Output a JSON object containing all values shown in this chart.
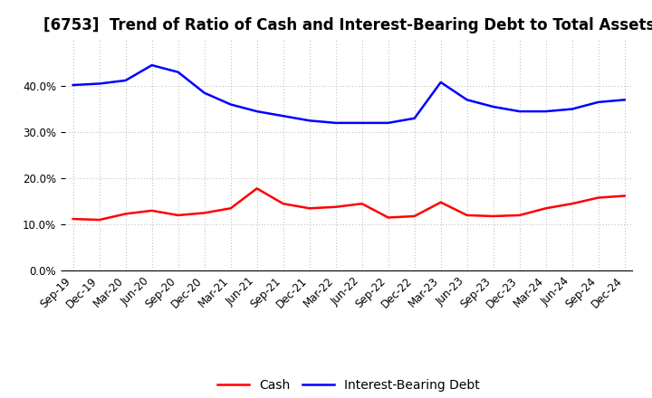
{
  "title": "[6753]  Trend of Ratio of Cash and Interest-Bearing Debt to Total Assets",
  "labels": [
    "Sep-19",
    "Dec-19",
    "Mar-20",
    "Jun-20",
    "Sep-20",
    "Dec-20",
    "Mar-21",
    "Jun-21",
    "Sep-21",
    "Dec-21",
    "Mar-22",
    "Jun-22",
    "Sep-22",
    "Dec-22",
    "Mar-23",
    "Jun-23",
    "Sep-23",
    "Dec-23",
    "Mar-24",
    "Jun-24",
    "Sep-24",
    "Dec-24"
  ],
  "cash": [
    11.2,
    11.0,
    12.3,
    13.0,
    12.0,
    12.5,
    13.5,
    17.8,
    14.5,
    13.5,
    13.8,
    14.5,
    11.5,
    11.8,
    14.8,
    12.0,
    11.8,
    12.0,
    13.5,
    14.5,
    15.8,
    16.2
  ],
  "ibd": [
    40.2,
    40.5,
    41.2,
    44.5,
    43.0,
    38.5,
    36.0,
    34.5,
    33.5,
    32.5,
    32.0,
    32.0,
    32.0,
    33.0,
    40.8,
    37.0,
    35.5,
    34.5,
    34.5,
    35.0,
    36.5,
    37.0
  ],
  "cash_color": "#ff0000",
  "ibd_color": "#0000ff",
  "bg_color": "#ffffff",
  "plot_bg_color": "#ffffff",
  "grid_color": "#aaaaaa",
  "ylim": [
    0,
    50
  ],
  "yticks": [
    0,
    10,
    20,
    30,
    40
  ],
  "legend_cash": "Cash",
  "legend_ibd": "Interest-Bearing Debt",
  "title_fontsize": 12,
  "tick_fontsize": 8.5,
  "legend_fontsize": 10,
  "line_width": 1.8
}
